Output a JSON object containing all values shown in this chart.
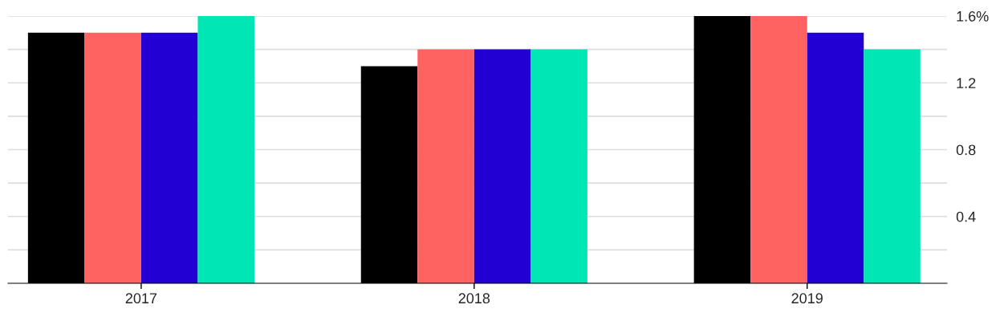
{
  "chart_data": {
    "type": "bar",
    "categories": [
      "2017",
      "2018",
      "2019"
    ],
    "series": [
      {
        "color": "#000000",
        "values": [
          1.5,
          1.3,
          1.6
        ]
      },
      {
        "color": "#ff6361",
        "values": [
          1.5,
          1.4,
          1.6
        ]
      },
      {
        "color": "#2200d4",
        "values": [
          1.5,
          1.4,
          1.5
        ]
      },
      {
        "color": "#00e6b4",
        "values": [
          1.6,
          1.4,
          1.4
        ]
      }
    ],
    "ylim": [
      0,
      1.6
    ],
    "yticks": [
      {
        "value": 0.2,
        "label": null
      },
      {
        "value": 0.4,
        "label": "0.4"
      },
      {
        "value": 0.6,
        "label": null
      },
      {
        "value": 0.8,
        "label": "0.8"
      },
      {
        "value": 1.0,
        "label": null
      },
      {
        "value": 1.2,
        "label": "1.2"
      },
      {
        "value": 1.4,
        "label": null
      },
      {
        "value": 1.6,
        "label": "1.6%"
      }
    ],
    "grid": "y"
  }
}
